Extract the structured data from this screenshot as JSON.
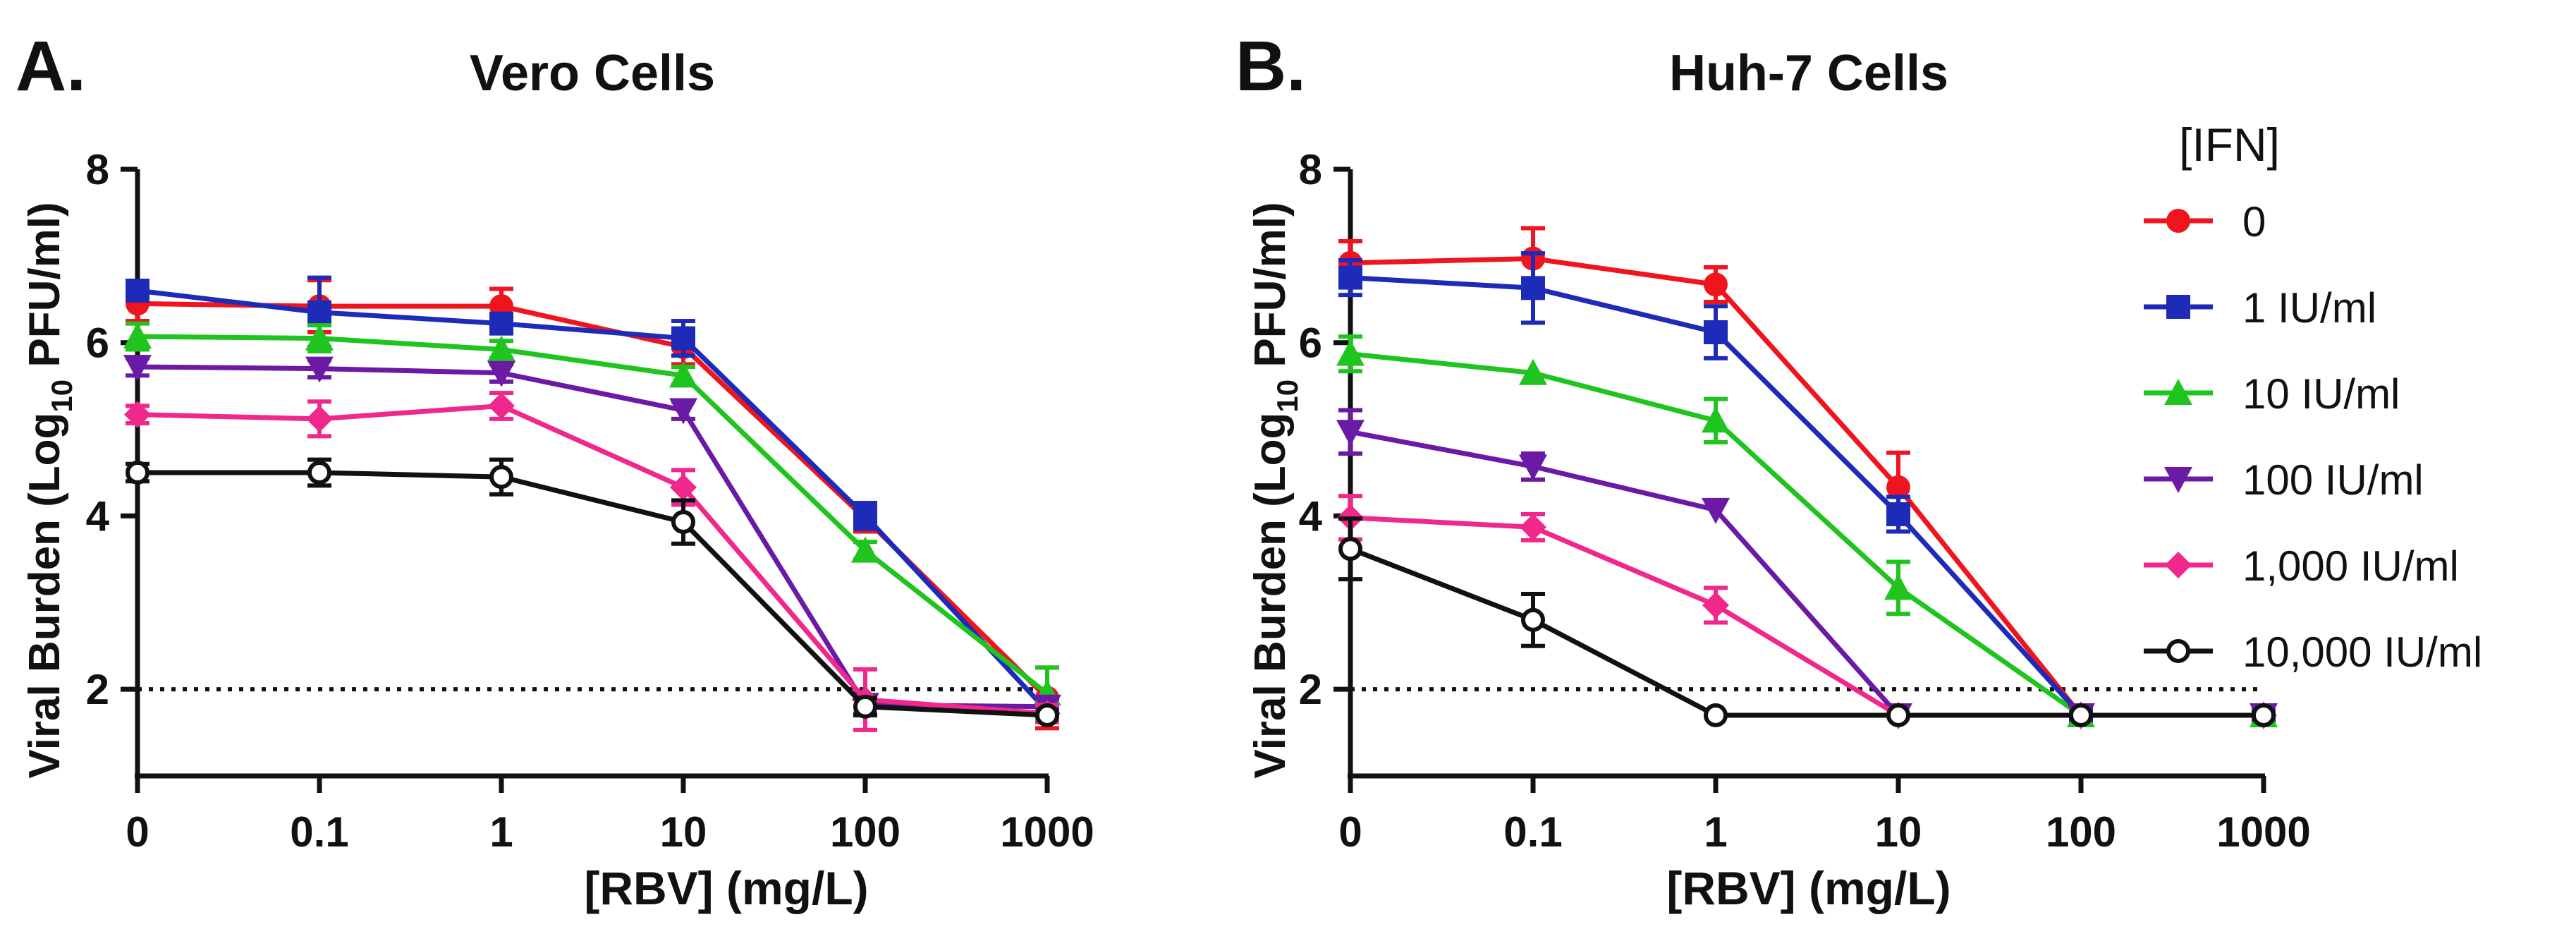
{
  "legend": {
    "title": "[IFN]",
    "entries": [
      {
        "label": "0",
        "color": "#f0141e",
        "marker": "circle-filled"
      },
      {
        "label": "1 IU/ml",
        "color": "#1e2bb8",
        "marker": "square"
      },
      {
        "label": "10 IU/ml",
        "color": "#1fc41f",
        "marker": "triangle-up"
      },
      {
        "label": "100 IU/ml",
        "color": "#6a1aa4",
        "marker": "triangle-down"
      },
      {
        "label": "1,000 IU/ml",
        "color": "#f0288c",
        "marker": "diamond"
      },
      {
        "label": "10,000 IU/ml",
        "color": "#111111",
        "marker": "circle-open"
      }
    ]
  },
  "chart_data": [
    {
      "panel_label": "A.",
      "type": "line",
      "title": "Vero Cells",
      "xlabel": "[RBV] (mg/L)",
      "ylabel_parts": {
        "before": "Viral Burden (Log",
        "sub": "10",
        "after": " PFU/ml)"
      },
      "categories": [
        "0",
        "0.1",
        "1",
        "10",
        "100",
        "1000"
      ],
      "ylim": [
        1,
        8
      ],
      "yticks": [
        "2",
        "4",
        "6",
        "8"
      ],
      "ytick_values": [
        2,
        4,
        6,
        8
      ],
      "threshold": 2,
      "series": [
        {
          "name": "0",
          "values": [
            6.45,
            6.42,
            6.42,
            5.95,
            3.97,
            1.9
          ],
          "errors": [
            0.2,
            0.3,
            0.2,
            0.2,
            0.15,
            0.35
          ]
        },
        {
          "name": "1 IU/ml",
          "values": [
            6.6,
            6.35,
            6.22,
            6.05,
            4.0,
            1.75
          ],
          "errors": [
            0.1,
            0.4,
            0.1,
            0.2,
            0.15,
            0.1
          ]
        },
        {
          "name": "10 IU/ml",
          "values": [
            6.07,
            6.05,
            5.92,
            5.62,
            3.6,
            1.95
          ],
          "errors": [
            0.15,
            0.15,
            0.1,
            0.1,
            0.1,
            0.3
          ]
        },
        {
          "name": "100 IU/ml",
          "values": [
            5.72,
            5.7,
            5.65,
            5.22,
            1.82,
            1.8
          ],
          "errors": [
            0.1,
            0.1,
            0.1,
            0.1,
            0.1,
            0.1
          ]
        },
        {
          "name": "1,000 IU/ml",
          "values": [
            5.17,
            5.12,
            5.27,
            4.33,
            1.88,
            1.72
          ],
          "errors": [
            0.1,
            0.2,
            0.15,
            0.2,
            0.35,
            0.1
          ]
        },
        {
          "name": "10,000 IU/ml",
          "values": [
            4.5,
            4.5,
            4.45,
            3.93,
            1.8,
            1.7
          ],
          "errors": [
            0.1,
            0.15,
            0.2,
            0.25,
            0.1,
            0.05
          ]
        }
      ]
    },
    {
      "panel_label": "B.",
      "type": "line",
      "title": "Huh-7 Cells",
      "xlabel": "[RBV] (mg/L)",
      "ylabel_parts": {
        "before": "Viral Burden (Log",
        "sub": "10",
        "after": " PFU/ml)"
      },
      "categories": [
        "0",
        "0.1",
        "1",
        "10",
        "100",
        "1000"
      ],
      "ylim": [
        1,
        8
      ],
      "yticks": [
        "2",
        "4",
        "6",
        "8"
      ],
      "ytick_values": [
        2,
        4,
        6,
        8
      ],
      "threshold": 2,
      "series": [
        {
          "name": "0",
          "values": [
            6.92,
            6.97,
            6.67,
            4.33,
            1.7,
            1.7
          ],
          "errors": [
            0.25,
            0.35,
            0.2,
            0.4,
            0.05,
            0.05
          ]
        },
        {
          "name": "1 IU/ml",
          "values": [
            6.75,
            6.63,
            6.12,
            4.02,
            1.7,
            1.7
          ],
          "errors": [
            0.2,
            0.4,
            0.3,
            0.2,
            0.05,
            0.05
          ]
        },
        {
          "name": "10 IU/ml",
          "values": [
            5.87,
            5.65,
            5.1,
            3.17,
            1.7,
            1.7
          ],
          "errors": [
            0.2,
            0.05,
            0.25,
            0.3,
            0.05,
            0.05
          ]
        },
        {
          "name": "100 IU/ml",
          "values": [
            4.97,
            4.57,
            4.07,
            1.7,
            1.7,
            1.7
          ],
          "errors": [
            0.25,
            0.15,
            0.05,
            0.05,
            0.05,
            0.05
          ]
        },
        {
          "name": "1,000 IU/ml",
          "values": [
            3.98,
            3.87,
            2.97,
            1.7,
            1.7,
            1.7
          ],
          "errors": [
            0.25,
            0.15,
            0.2,
            0.05,
            0.05,
            0.05
          ]
        },
        {
          "name": "10,000 IU/ml",
          "values": [
            3.62,
            2.8,
            1.7,
            1.7,
            1.7,
            1.7
          ],
          "errors": [
            0.35,
            0.3,
            0.05,
            0.05,
            0.05,
            0.05
          ]
        }
      ]
    }
  ]
}
